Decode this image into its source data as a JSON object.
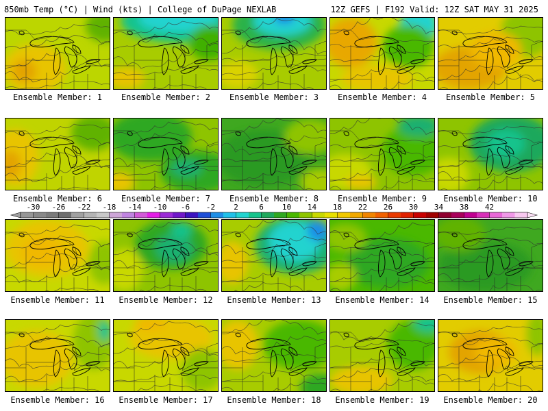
{
  "header": {
    "left": "850mb Temp (°C) | Wind (kts) | College of DuPage NEXLAB",
    "right": "12Z GEFS | F192 Valid: 12Z SAT MAY 31 2025"
  },
  "caption_prefix": "Ensemble Member: ",
  "members": [
    {
      "number": "1",
      "label": "Ensemble Member: 1",
      "base": "#bcd600",
      "blobs": [
        [
          "#e8c400",
          0.28,
          0.72,
          0.3,
          0.35
        ],
        [
          "#e3a400",
          0.18,
          0.75,
          0.12,
          0.16
        ],
        [
          "#60b200",
          0.95,
          0.12,
          0.18,
          0.22
        ]
      ]
    },
    {
      "number": "2",
      "label": "Ensemble Member: 2",
      "base": "#a8cc00",
      "blobs": [
        [
          "#17c38c",
          0.62,
          0.05,
          0.55,
          0.3
        ],
        [
          "#22d3cf",
          0.62,
          0.02,
          0.38,
          0.18
        ],
        [
          "#3fb000",
          0.92,
          0.35,
          0.2,
          0.25
        ],
        [
          "#e8c400",
          0.12,
          0.85,
          0.18,
          0.15
        ]
      ]
    },
    {
      "number": "3",
      "label": "Ensemble Member: 3",
      "base": "#a8cc00",
      "blobs": [
        [
          "#2bb24a",
          0.55,
          0.1,
          0.45,
          0.35
        ],
        [
          "#22d3cf",
          0.58,
          0.05,
          0.28,
          0.2
        ],
        [
          "#1f8ee6",
          0.6,
          0.0,
          0.1,
          0.09
        ],
        [
          "#d9d200",
          0.15,
          0.8,
          0.2,
          0.2
        ]
      ]
    },
    {
      "number": "4",
      "label": "Ensemble Member: 4",
      "base": "#c8d800",
      "blobs": [
        [
          "#e8a800",
          0.2,
          0.35,
          0.25,
          0.35
        ],
        [
          "#22d3cf",
          0.85,
          0.1,
          0.18,
          0.25
        ],
        [
          "#4ab800",
          0.75,
          0.4,
          0.25,
          0.3
        ],
        [
          "#e8c400",
          0.45,
          0.85,
          0.35,
          0.18
        ]
      ]
    },
    {
      "number": "5",
      "label": "Ensemble Member: 5",
      "base": "#e2cc00",
      "blobs": [
        [
          "#e3a400",
          0.3,
          0.7,
          0.35,
          0.3
        ],
        [
          "#8ec400",
          0.85,
          0.2,
          0.25,
          0.35
        ],
        [
          "#f0b800",
          0.55,
          0.45,
          0.25,
          0.25
        ]
      ]
    },
    {
      "number": "6",
      "label": "Ensemble Member: 6",
      "base": "#c0d400",
      "blobs": [
        [
          "#e8c400",
          0.1,
          0.55,
          0.22,
          0.4
        ],
        [
          "#e3a400",
          0.05,
          0.65,
          0.1,
          0.2
        ],
        [
          "#60b200",
          0.85,
          0.2,
          0.22,
          0.25
        ]
      ]
    },
    {
      "number": "7",
      "label": "Ensemble Member: 7",
      "base": "#8ec400",
      "blobs": [
        [
          "#2fa820",
          0.35,
          0.25,
          0.4,
          0.35
        ],
        [
          "#2fa820",
          0.8,
          0.75,
          0.35,
          0.3
        ],
        [
          "#e8c400",
          0.05,
          0.9,
          0.15,
          0.15
        ],
        [
          "#1cb070",
          0.7,
          0.7,
          0.15,
          0.12
        ]
      ]
    },
    {
      "number": "8",
      "label": "Ensemble Member: 8",
      "base": "#3fa820",
      "blobs": [
        [
          "#2a9a20",
          0.4,
          0.55,
          0.45,
          0.4
        ],
        [
          "#8ec400",
          0.85,
          0.25,
          0.25,
          0.25
        ],
        [
          "#a8cc00",
          0.95,
          0.9,
          0.2,
          0.2
        ]
      ]
    },
    {
      "number": "9",
      "label": "Ensemble Member: 9",
      "base": "#8ec400",
      "blobs": [
        [
          "#c8d800",
          0.15,
          0.75,
          0.25,
          0.25
        ],
        [
          "#4ab800",
          0.8,
          0.45,
          0.3,
          0.35
        ],
        [
          "#1cb070",
          0.85,
          0.1,
          0.2,
          0.15
        ],
        [
          "#e8c400",
          0.3,
          0.9,
          0.15,
          0.1
        ]
      ]
    },
    {
      "number": "10",
      "label": "Ensemble Member: 10",
      "base": "#8ec400",
      "blobs": [
        [
          "#1fa85c",
          0.7,
          0.35,
          0.4,
          0.4
        ],
        [
          "#17c38c",
          0.65,
          0.35,
          0.18,
          0.2
        ],
        [
          "#c8d800",
          0.1,
          0.8,
          0.2,
          0.25
        ]
      ]
    },
    {
      "number": "11",
      "label": "Ensemble Member: 11",
      "base": "#c8d800",
      "blobs": [
        [
          "#e8c400",
          0.4,
          0.4,
          0.4,
          0.4
        ],
        [
          "#f0b800",
          0.35,
          0.45,
          0.2,
          0.2
        ],
        [
          "#8ec400",
          0.95,
          0.6,
          0.15,
          0.3
        ]
      ]
    },
    {
      "number": "12",
      "label": "Ensemble Member: 12",
      "base": "#8ec400",
      "blobs": [
        [
          "#2fa820",
          0.55,
          0.35,
          0.35,
          0.35
        ],
        [
          "#1cb070",
          0.58,
          0.4,
          0.18,
          0.2
        ],
        [
          "#17c38c",
          0.65,
          0.15,
          0.1,
          0.1
        ],
        [
          "#c8d800",
          0.1,
          0.7,
          0.18,
          0.3
        ]
      ]
    },
    {
      "number": "13",
      "label": "Ensemble Member: 13",
      "base": "#a8cc00",
      "blobs": [
        [
          "#1cb070",
          0.72,
          0.35,
          0.4,
          0.4
        ],
        [
          "#22d3cf",
          0.7,
          0.3,
          0.25,
          0.28
        ],
        [
          "#1f8ee6",
          0.92,
          0.15,
          0.1,
          0.15
        ],
        [
          "#e8c400",
          0.1,
          0.6,
          0.15,
          0.3
        ]
      ]
    },
    {
      "number": "14",
      "label": "Ensemble Member: 14",
      "base": "#4ab800",
      "blobs": [
        [
          "#2fa820",
          0.55,
          0.6,
          0.4,
          0.35
        ],
        [
          "#8ec400",
          0.15,
          0.25,
          0.2,
          0.2
        ],
        [
          "#a8cc00",
          0.1,
          0.8,
          0.15,
          0.2
        ]
      ]
    },
    {
      "number": "15",
      "label": "Ensemble Member: 15",
      "base": "#3fa820",
      "blobs": [
        [
          "#2a9a20",
          0.45,
          0.65,
          0.45,
          0.35
        ],
        [
          "#60b200",
          0.2,
          0.2,
          0.25,
          0.25
        ]
      ]
    },
    {
      "number": "16",
      "label": "Ensemble Member: 16",
      "base": "#c8d800",
      "blobs": [
        [
          "#e8c400",
          0.3,
          0.55,
          0.35,
          0.4
        ],
        [
          "#8ec400",
          0.85,
          0.3,
          0.2,
          0.4
        ],
        [
          "#17c38c",
          0.95,
          0.15,
          0.06,
          0.15
        ]
      ]
    },
    {
      "number": "17",
      "label": "Ensemble Member: 17",
      "base": "#c8d800",
      "blobs": [
        [
          "#e8c400",
          0.55,
          0.25,
          0.4,
          0.3
        ],
        [
          "#f0b800",
          0.35,
          0.05,
          0.15,
          0.1
        ],
        [
          "#8ec400",
          0.85,
          0.7,
          0.2,
          0.3
        ]
      ]
    },
    {
      "number": "18",
      "label": "Ensemble Member: 18",
      "base": "#a8cc00",
      "blobs": [
        [
          "#4ab800",
          0.75,
          0.35,
          0.35,
          0.35
        ],
        [
          "#e8c400",
          0.15,
          0.35,
          0.2,
          0.35
        ],
        [
          "#2fa820",
          0.95,
          0.95,
          0.2,
          0.2
        ]
      ]
    },
    {
      "number": "19",
      "label": "Ensemble Member: 19",
      "base": "#a8cc00",
      "blobs": [
        [
          "#e8c400",
          0.3,
          0.85,
          0.3,
          0.2
        ],
        [
          "#4ab800",
          0.8,
          0.35,
          0.25,
          0.35
        ],
        [
          "#17c38c",
          0.95,
          0.05,
          0.15,
          0.12
        ]
      ]
    },
    {
      "number": "20",
      "label": "Ensemble Member: 20",
      "base": "#e2cc00",
      "blobs": [
        [
          "#e3a400",
          0.4,
          0.45,
          0.3,
          0.3
        ],
        [
          "#f0b800",
          0.55,
          0.45,
          0.2,
          0.2
        ],
        [
          "#8ec400",
          0.95,
          0.2,
          0.1,
          0.3
        ]
      ]
    }
  ],
  "colorbar": {
    "ticks": [
      "-30",
      "-26",
      "-22",
      "-18",
      "-14",
      "-10",
      "-6",
      "-2",
      "2",
      "6",
      "10",
      "14",
      "18",
      "22",
      "26",
      "30",
      "34",
      "38",
      "42"
    ],
    "colors": [
      "#969696",
      "#888888",
      "#7a7a7a",
      "#6e6e6e",
      "#a0a0a0",
      "#b4b4b4",
      "#c8c8c8",
      "#cda5d8",
      "#c084e0",
      "#d25ad8",
      "#e31ee6",
      "#9b2bd6",
      "#7018c8",
      "#3c14c0",
      "#1f4fd8",
      "#1f8ee6",
      "#20c0e8",
      "#22d3cf",
      "#17c38c",
      "#1fa85c",
      "#2fa820",
      "#4ab800",
      "#8ec400",
      "#c8d800",
      "#e8e000",
      "#f0c800",
      "#f0a800",
      "#f08400",
      "#f06000",
      "#e83a00",
      "#e02000",
      "#c80000",
      "#a00000",
      "#900030",
      "#a8005a",
      "#c00090",
      "#d830b8",
      "#e868d8",
      "#f098e8",
      "#f8c8f0"
    ]
  }
}
